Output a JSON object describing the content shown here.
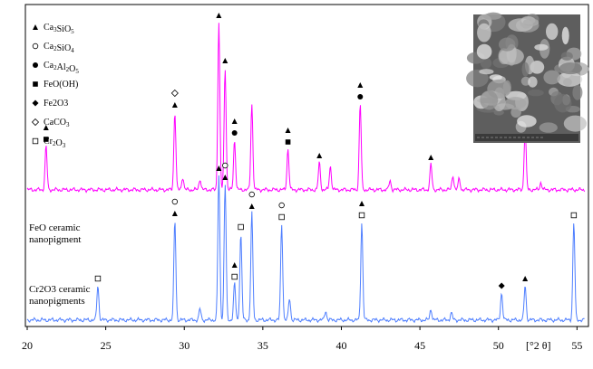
{
  "chart_data": {
    "type": "line",
    "xlabel": "[°2 θ]",
    "xlim": [
      20,
      55.5
    ],
    "xticks": [
      20,
      25,
      30,
      35,
      40,
      45,
      50,
      55
    ],
    "colors": {
      "top": "#ff00ff",
      "bottom": "#4f7fff"
    },
    "legend": [
      {
        "marker": "tri",
        "base": "Ca",
        "sub1": "3",
        "mid": "SiO",
        "sub2": "5",
        "tail": ""
      },
      {
        "marker": "circle-o",
        "base": "Ca",
        "sub1": "2",
        "mid": "SiO",
        "sub2": "4",
        "tail": ""
      },
      {
        "marker": "circle",
        "base": "Ca",
        "sub1": "2",
        "mid": "Al",
        "sub2": "2",
        "tail": "O",
        "sub3": "5"
      },
      {
        "marker": "square",
        "base": "FeO(OH)",
        "sub1": "",
        "mid": "",
        "sub2": "",
        "tail": ""
      },
      {
        "marker": "diamond",
        "base": "Fe2O3",
        "sub1": "",
        "mid": "",
        "sub2": "",
        "tail": ""
      },
      {
        "marker": "diamond-o",
        "base": "CaCO",
        "sub1": "3",
        "mid": "",
        "sub2": "",
        "tail": ""
      },
      {
        "marker": "square-o",
        "base": "Cr",
        "sub1": "2",
        "mid": "O",
        "sub2": "3",
        "tail": ""
      }
    ],
    "series": [
      {
        "label_lines": [
          "FeO ceramic",
          "nanopigment"
        ],
        "color": "#ff00ff",
        "baseline": 150,
        "peaks": [
          [
            21.2,
            48
          ],
          [
            29.4,
            86
          ],
          [
            29.9,
            14
          ],
          [
            31.0,
            12
          ],
          [
            32.2,
            185
          ],
          [
            32.6,
            135
          ],
          [
            33.2,
            55
          ],
          [
            34.3,
            95
          ],
          [
            36.6,
            45
          ],
          [
            38.6,
            30
          ],
          [
            39.3,
            26
          ],
          [
            41.2,
            95
          ],
          [
            43.1,
            10
          ],
          [
            45.7,
            28
          ],
          [
            47.1,
            16
          ],
          [
            47.5,
            12
          ],
          [
            51.7,
            68
          ],
          [
            52.7,
            8
          ]
        ],
        "markers": [
          {
            "x": 21.2,
            "symbols": [
              "tri",
              "square"
            ]
          },
          {
            "x": 29.4,
            "symbols": [
              "diamond-o",
              "tri"
            ]
          },
          {
            "x": 32.2,
            "symbols": [
              "tri"
            ]
          },
          {
            "x": 32.6,
            "symbols": [
              "tri"
            ]
          },
          {
            "x": 33.2,
            "symbols": [
              "tri",
              "circle"
            ]
          },
          {
            "x": 36.6,
            "symbols": [
              "tri",
              "square"
            ]
          },
          {
            "x": 38.6,
            "symbols": [
              "tri"
            ]
          },
          {
            "x": 41.2,
            "symbols": [
              "tri",
              "circle"
            ]
          },
          {
            "x": 45.7,
            "symbols": [
              "tri"
            ]
          },
          {
            "x": 51.7,
            "symbols": [
              "tri"
            ]
          }
        ]
      },
      {
        "label_lines": [
          "Cr2O3 ceramic",
          "nanopigments"
        ],
        "color": "#4f7fff",
        "baseline": 60,
        "peaks": [
          [
            24.5,
            38
          ],
          [
            29.4,
            110
          ],
          [
            31.0,
            12
          ],
          [
            32.2,
            160
          ],
          [
            32.6,
            150
          ],
          [
            33.2,
            40
          ],
          [
            33.6,
            95
          ],
          [
            34.3,
            118
          ],
          [
            36.2,
            106
          ],
          [
            36.7,
            24
          ],
          [
            39.0,
            10
          ],
          [
            41.3,
            108
          ],
          [
            45.7,
            12
          ],
          [
            47.0,
            8
          ],
          [
            50.2,
            30
          ],
          [
            51.7,
            38
          ],
          [
            54.8,
            108
          ]
        ],
        "markers": [
          {
            "x": 24.5,
            "symbols": [
              "square-o"
            ]
          },
          {
            "x": 29.4,
            "symbols": [
              "circle-o",
              "tri"
            ]
          },
          {
            "x": 32.2,
            "symbols": [
              "tri"
            ]
          },
          {
            "x": 32.6,
            "symbols": [
              "circle-o",
              "tri"
            ]
          },
          {
            "x": 33.2,
            "symbols": [
              "tri",
              "square-o"
            ]
          },
          {
            "x": 33.6,
            "symbols": [
              "square-o"
            ]
          },
          {
            "x": 34.3,
            "symbols": [
              "circle-o",
              "tri"
            ]
          },
          {
            "x": 36.2,
            "symbols": [
              "circle-o",
              "square-o"
            ]
          },
          {
            "x": 41.3,
            "symbols": [
              "tri",
              "square-o"
            ]
          },
          {
            "x": 50.2,
            "symbols": [
              "diamond"
            ]
          },
          {
            "x": 51.7,
            "symbols": [
              "tri"
            ]
          },
          {
            "x": 54.8,
            "symbols": [
              "square-o"
            ]
          }
        ]
      }
    ]
  }
}
